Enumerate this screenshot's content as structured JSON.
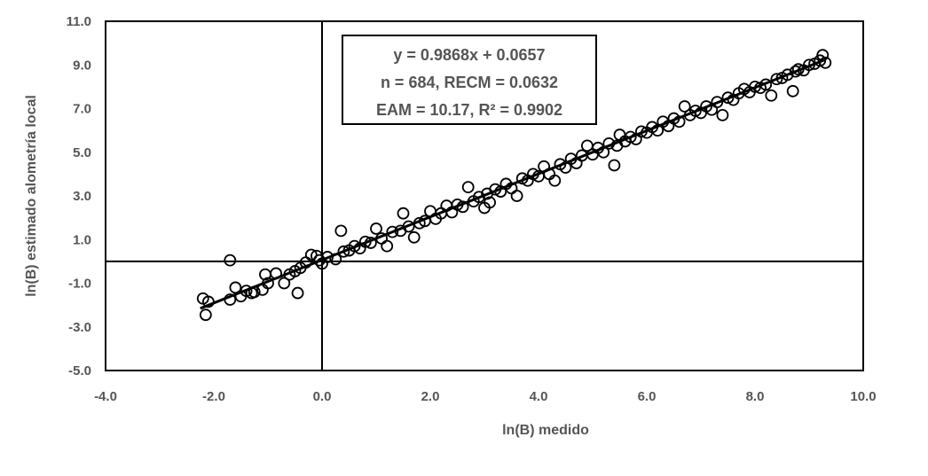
{
  "chart_data": {
    "type": "scatter",
    "title": "",
    "xlabel": "ln(B) medido",
    "ylabel": "ln(B) estimado alometría local",
    "xlim": [
      -4.0,
      10.0
    ],
    "ylim": [
      -5.0,
      11.0
    ],
    "x_ticks": [
      "-4.0",
      "-2.0",
      "0.0",
      "2.0",
      "4.0",
      "6.0",
      "8.0",
      "10.0"
    ],
    "y_ticks": [
      "-5.0",
      "-3.0",
      "-1.0",
      "1.0",
      "3.0",
      "5.0",
      "7.0",
      "9.0",
      "11.0"
    ],
    "grid": false,
    "reference_lines": {
      "x": 0.0,
      "y": 0.0
    },
    "regression": {
      "slope": 0.9868,
      "intercept": 0.0657,
      "x_range": [
        -2.25,
        9.3
      ]
    },
    "annotation": [
      "y = 0.9868x + 0.0657",
      "n = 684, RECM = 0.0632",
      "EAM = 10.17, R² = 0.9902"
    ],
    "series": [
      {
        "marker": "open-circle",
        "points": [
          [
            -2.2,
            -1.7
          ],
          [
            -2.15,
            -2.45
          ],
          [
            -2.1,
            -1.85
          ],
          [
            -1.7,
            0.05
          ],
          [
            -1.7,
            -1.75
          ],
          [
            -1.6,
            -1.2
          ],
          [
            -1.5,
            -1.6
          ],
          [
            -1.4,
            -1.35
          ],
          [
            -1.3,
            -1.45
          ],
          [
            -1.25,
            -1.4
          ],
          [
            -1.1,
            -1.3
          ],
          [
            -1.05,
            -0.6
          ],
          [
            -1.0,
            -1.0
          ],
          [
            -0.85,
            -0.55
          ],
          [
            -0.7,
            -1.0
          ],
          [
            -0.6,
            -0.6
          ],
          [
            -0.5,
            -0.45
          ],
          [
            -0.45,
            -1.45
          ],
          [
            -0.4,
            -0.3
          ],
          [
            -0.3,
            -0.05
          ],
          [
            -0.2,
            0.3
          ],
          [
            -0.1,
            0.25
          ],
          [
            -0.05,
            0.05
          ],
          [
            0.0,
            -0.1
          ],
          [
            0.1,
            0.2
          ],
          [
            0.25,
            0.1
          ],
          [
            0.35,
            1.4
          ],
          [
            0.4,
            0.45
          ],
          [
            0.5,
            0.5
          ],
          [
            0.6,
            0.7
          ],
          [
            0.7,
            0.6
          ],
          [
            0.8,
            0.9
          ],
          [
            0.9,
            0.85
          ],
          [
            1.0,
            1.5
          ],
          [
            1.1,
            1.05
          ],
          [
            1.2,
            0.7
          ],
          [
            1.3,
            1.35
          ],
          [
            1.45,
            1.4
          ],
          [
            1.5,
            2.2
          ],
          [
            1.6,
            1.6
          ],
          [
            1.7,
            1.1
          ],
          [
            1.8,
            1.75
          ],
          [
            1.9,
            1.85
          ],
          [
            2.0,
            2.3
          ],
          [
            2.1,
            1.95
          ],
          [
            2.2,
            2.2
          ],
          [
            2.3,
            2.55
          ],
          [
            2.4,
            2.25
          ],
          [
            2.5,
            2.6
          ],
          [
            2.6,
            2.5
          ],
          [
            2.7,
            3.4
          ],
          [
            2.8,
            2.75
          ],
          [
            2.9,
            2.95
          ],
          [
            3.0,
            2.45
          ],
          [
            3.05,
            3.1
          ],
          [
            3.1,
            2.7
          ],
          [
            3.2,
            3.3
          ],
          [
            3.3,
            3.2
          ],
          [
            3.4,
            3.55
          ],
          [
            3.5,
            3.35
          ],
          [
            3.6,
            3.0
          ],
          [
            3.7,
            3.8
          ],
          [
            3.8,
            3.7
          ],
          [
            3.9,
            4.0
          ],
          [
            4.0,
            3.9
          ],
          [
            4.1,
            4.35
          ],
          [
            4.2,
            4.0
          ],
          [
            4.3,
            3.7
          ],
          [
            4.4,
            4.45
          ],
          [
            4.5,
            4.3
          ],
          [
            4.6,
            4.7
          ],
          [
            4.7,
            4.5
          ],
          [
            4.8,
            4.85
          ],
          [
            4.9,
            5.3
          ],
          [
            5.0,
            4.9
          ],
          [
            5.1,
            5.2
          ],
          [
            5.2,
            5.0
          ],
          [
            5.3,
            5.4
          ],
          [
            5.4,
            4.4
          ],
          [
            5.45,
            5.3
          ],
          [
            5.5,
            5.8
          ],
          [
            5.6,
            5.5
          ],
          [
            5.7,
            5.7
          ],
          [
            5.8,
            5.6
          ],
          [
            5.9,
            5.95
          ],
          [
            6.0,
            5.9
          ],
          [
            6.1,
            6.15
          ],
          [
            6.2,
            6.0
          ],
          [
            6.3,
            6.4
          ],
          [
            6.4,
            6.2
          ],
          [
            6.5,
            6.55
          ],
          [
            6.6,
            6.4
          ],
          [
            6.7,
            7.1
          ],
          [
            6.8,
            6.7
          ],
          [
            6.9,
            6.9
          ],
          [
            7.0,
            6.8
          ],
          [
            7.1,
            7.1
          ],
          [
            7.2,
            6.95
          ],
          [
            7.3,
            7.3
          ],
          [
            7.4,
            6.7
          ],
          [
            7.5,
            7.5
          ],
          [
            7.6,
            7.4
          ],
          [
            7.7,
            7.7
          ],
          [
            7.8,
            7.9
          ],
          [
            7.9,
            7.75
          ],
          [
            8.0,
            8.0
          ],
          [
            8.1,
            7.95
          ],
          [
            8.2,
            8.1
          ],
          [
            8.3,
            7.6
          ],
          [
            8.4,
            8.35
          ],
          [
            8.5,
            8.4
          ],
          [
            8.6,
            8.55
          ],
          [
            8.7,
            7.8
          ],
          [
            8.75,
            8.7
          ],
          [
            8.8,
            8.8
          ],
          [
            8.9,
            8.75
          ],
          [
            9.0,
            9.0
          ],
          [
            9.1,
            9.05
          ],
          [
            9.2,
            9.2
          ],
          [
            9.3,
            9.1
          ],
          [
            9.25,
            9.45
          ]
        ]
      }
    ]
  }
}
